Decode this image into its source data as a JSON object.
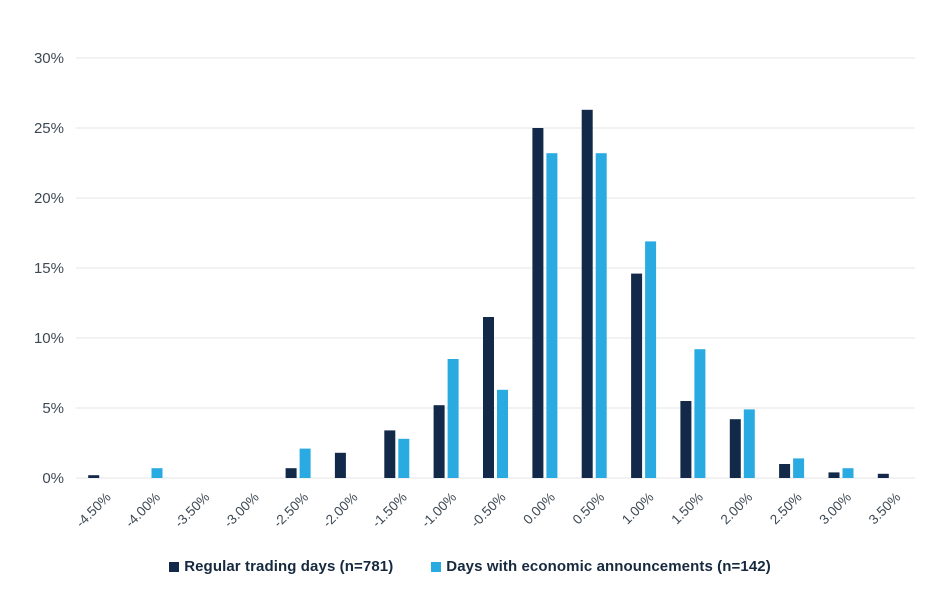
{
  "chart_data": {
    "type": "bar",
    "title": "",
    "xlabel": "",
    "ylabel": "",
    "grid": true,
    "legend_position": "bottom",
    "ylim": [
      0,
      30
    ],
    "y_ticks": [
      {
        "value": 0,
        "label": "0%"
      },
      {
        "value": 5,
        "label": "5%"
      },
      {
        "value": 10,
        "label": "10%"
      },
      {
        "value": 15,
        "label": "15%"
      },
      {
        "value": 20,
        "label": "20%"
      },
      {
        "value": 25,
        "label": "25%"
      },
      {
        "value": 30,
        "label": "30%"
      }
    ],
    "categories": [
      "-4.50%",
      "-4.00%",
      "-3.50%",
      "-3.00%",
      "-2.50%",
      "-2.00%",
      "-1.50%",
      "-1.00%",
      "-0.50%",
      "0.00%",
      "0.50%",
      "1.00%",
      "1.50%",
      "2.00%",
      "2.50%",
      "3.00%",
      "3.50%"
    ],
    "series": [
      {
        "name": "Regular trading days (n=781)",
        "color": "#12294a",
        "values": [
          0.2,
          0,
          0,
          0,
          0.7,
          1.8,
          3.4,
          5.2,
          11.5,
          25.0,
          26.3,
          14.6,
          5.5,
          4.2,
          1.0,
          0.4,
          0.3
        ]
      },
      {
        "name": "Days with economic announcements (n=142)",
        "color": "#29abe2",
        "values": [
          0,
          0.7,
          0,
          0,
          2.1,
          0,
          2.8,
          8.5,
          6.3,
          23.2,
          23.2,
          16.9,
          9.2,
          4.9,
          1.4,
          0.7,
          0
        ]
      }
    ]
  },
  "colors": {
    "gridline": "#e4e5e7",
    "axis_text": "#3e4954",
    "legend_text": "#16293f",
    "background": "#ffffff"
  }
}
